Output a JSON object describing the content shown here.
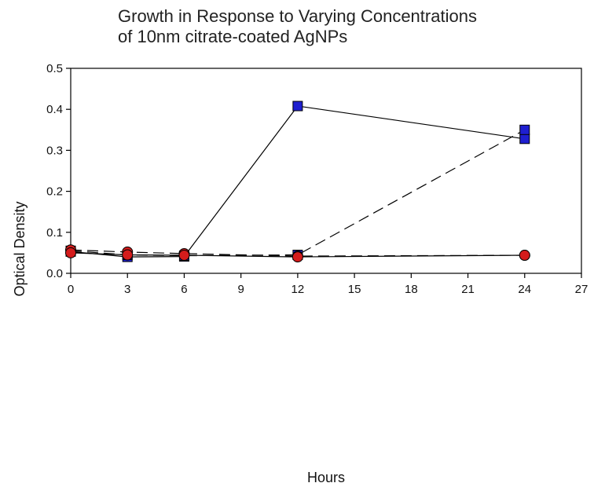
{
  "chart_data": {
    "type": "line",
    "title_lines": [
      "Growth in Response to Varying Concentrations",
      "of 10nm citrate-coated AgNPs"
    ],
    "xlabel": "Hours",
    "ylabel": "Optical Density",
    "xlim": [
      0,
      27
    ],
    "ylim": [
      0,
      0.5
    ],
    "x_ticks": [
      "0",
      "3",
      "6",
      "9",
      "12",
      "15",
      "18",
      "21",
      "24",
      "27"
    ],
    "y_ticks": [
      "0.0",
      "0.1",
      "0.2",
      "0.3",
      "0.4",
      "0.5"
    ],
    "grid": false,
    "series": [
      {
        "line_style": "solid",
        "marker": "square",
        "marker_color": "#1f1fd0",
        "points": [
          [
            0,
            0.053
          ],
          [
            3,
            0.04
          ],
          [
            6,
            0.041
          ],
          [
            12,
            0.408
          ],
          [
            24,
            0.328
          ]
        ]
      },
      {
        "line_style": "dashed",
        "marker": "square",
        "marker_color": "#1f1fd0",
        "points": [
          [
            0,
            0.055
          ],
          [
            3,
            0.045
          ],
          [
            6,
            0.043
          ],
          [
            12,
            0.045
          ],
          [
            24,
            0.35
          ]
        ]
      },
      {
        "line_style": "dashed",
        "marker": "circle",
        "marker_color": "#d41c1c",
        "points": [
          [
            0,
            0.057
          ],
          [
            3,
            0.052
          ],
          [
            6,
            0.048
          ],
          [
            12,
            0.042
          ],
          [
            24,
            0.044
          ]
        ]
      },
      {
        "line_style": "solid",
        "marker": "circle",
        "marker_color": "#d41c1c",
        "points": [
          [
            0,
            0.05
          ],
          [
            3,
            0.045
          ],
          [
            6,
            0.044
          ],
          [
            12,
            0.04
          ],
          [
            24,
            0.044
          ]
        ]
      }
    ]
  }
}
